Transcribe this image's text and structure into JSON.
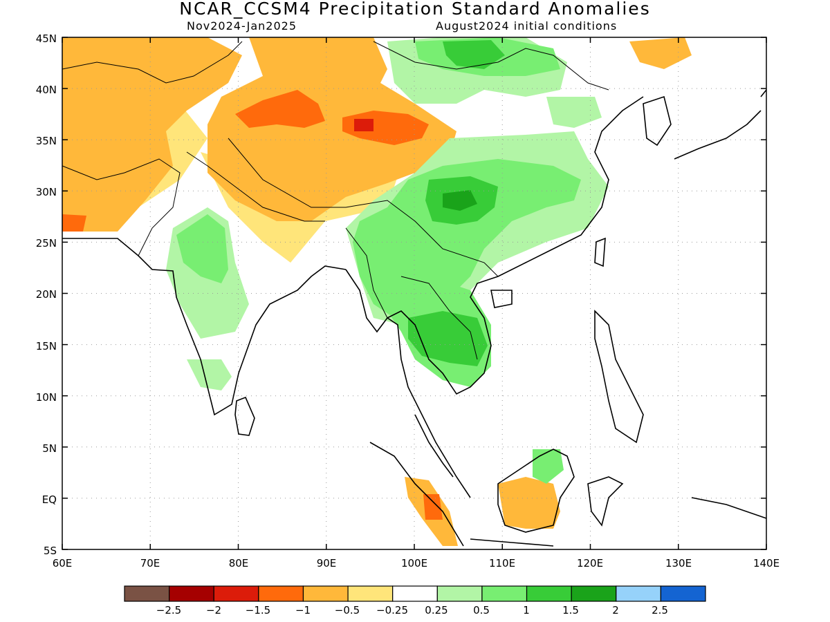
{
  "title": "NCAR_CCSM4 Precipitation Standard Anomalies",
  "subtitle_left": "Nov2024-Jan2025",
  "subtitle_right": "August2024 initial conditions",
  "map": {
    "lon_range": [
      60,
      140
    ],
    "lat_range": [
      -5,
      45
    ],
    "lon_ticks": [
      "60E",
      "70E",
      "80E",
      "90E",
      "100E",
      "110E",
      "120E",
      "130E",
      "140E"
    ],
    "lat_ticks": [
      "45N",
      "40N",
      "35N",
      "30N",
      "25N",
      "20N",
      "15N",
      "10N",
      "5N",
      "EQ",
      "5S"
    ],
    "gridlines": "dotted"
  },
  "legend": {
    "colors": [
      "#7a5244",
      "#a50000",
      "#dc1c0a",
      "#ff6a0c",
      "#ffb83a",
      "#ffe57a",
      "#ffffff",
      "#b2f5a6",
      "#78ee72",
      "#38cc38",
      "#1aa31a",
      "#96d2fa",
      "#1464d2"
    ],
    "labels": [
      "-2.5",
      "-2",
      "-1.5",
      "-1",
      "-0.5",
      "-0.25",
      "0.25",
      "0.5",
      "1",
      "1.5",
      "2",
      "2.5"
    ]
  },
  "anomaly_regions": [
    {
      "name": "northwest-dry",
      "level": -0.5
    },
    {
      "name": "tibet-dry",
      "level": -1
    },
    {
      "name": "tibet-core-dry",
      "level": -1.5
    },
    {
      "name": "south-china-wet",
      "level": 1
    },
    {
      "name": "south-china-core-wet",
      "level": 1.5
    },
    {
      "name": "indochina-wet",
      "level": 1
    },
    {
      "name": "mongolia-wet",
      "level": 1
    },
    {
      "name": "borneo-dry",
      "level": -0.5
    },
    {
      "name": "sumatra-dry",
      "level": -1
    },
    {
      "name": "central-india-wet",
      "level": 0.5
    }
  ]
}
